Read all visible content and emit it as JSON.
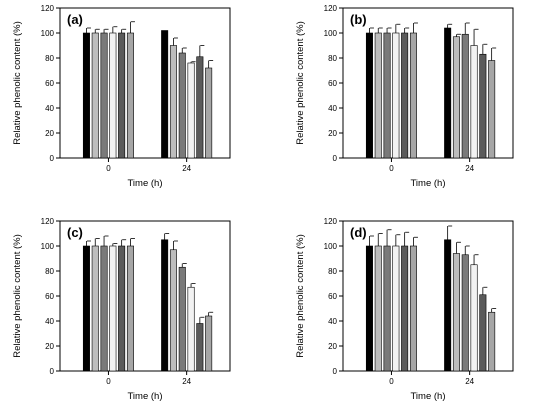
{
  "figure": {
    "colors": {
      "bar_fills": [
        "#000000",
        "#bdbdbd",
        "#7a7a7a",
        "#f2f2f2",
        "#5a5a5a",
        "#a6a6a6"
      ],
      "bar_stroke": "#000000",
      "axis": "#000000"
    }
  },
  "chart_data": [
    {
      "panel_label": "(a)",
      "type": "bar",
      "categories": [
        "0",
        "24"
      ],
      "xlabel": "Time (h)",
      "ylabel": "Relative phenolic content (%)",
      "ylim": [
        0,
        120
      ],
      "yticks": [
        0,
        20,
        40,
        60,
        80,
        100,
        120
      ],
      "grid": false,
      "series": [
        {
          "values": [
            100,
            102
          ],
          "errors": [
            4,
            0
          ]
        },
        {
          "values": [
            100,
            90
          ],
          "errors": [
            3,
            6
          ]
        },
        {
          "values": [
            100,
            84
          ],
          "errors": [
            3,
            4
          ]
        },
        {
          "values": [
            100,
            76
          ],
          "errors": [
            5,
            1
          ]
        },
        {
          "values": [
            100,
            81
          ],
          "errors": [
            3,
            9
          ]
        },
        {
          "values": [
            100,
            72
          ],
          "errors": [
            9,
            6
          ]
        }
      ]
    },
    {
      "panel_label": "(b)",
      "type": "bar",
      "categories": [
        "0",
        "24"
      ],
      "xlabel": "Time (h)",
      "ylabel": "Relative phenolic content (%)",
      "ylim": [
        0,
        120
      ],
      "yticks": [
        0,
        20,
        40,
        60,
        80,
        100,
        120
      ],
      "grid": false,
      "series": [
        {
          "values": [
            100,
            104
          ],
          "errors": [
            4,
            3
          ]
        },
        {
          "values": [
            100,
            97
          ],
          "errors": [
            4,
            2
          ]
        },
        {
          "values": [
            100,
            99
          ],
          "errors": [
            4,
            9
          ]
        },
        {
          "values": [
            100,
            90
          ],
          "errors": [
            7,
            13
          ]
        },
        {
          "values": [
            100,
            83
          ],
          "errors": [
            4,
            8
          ]
        },
        {
          "values": [
            100,
            78
          ],
          "errors": [
            8,
            10
          ]
        }
      ]
    },
    {
      "panel_label": "(c)",
      "type": "bar",
      "categories": [
        "0",
        "24"
      ],
      "xlabel": "Time (h)",
      "ylabel": "Relative phenolic content (%)",
      "ylim": [
        0,
        120
      ],
      "yticks": [
        0,
        20,
        40,
        60,
        80,
        100,
        120
      ],
      "grid": false,
      "series": [
        {
          "values": [
            100,
            105
          ],
          "errors": [
            4,
            5
          ]
        },
        {
          "values": [
            100,
            97
          ],
          "errors": [
            6,
            7
          ]
        },
        {
          "values": [
            100,
            83
          ],
          "errors": [
            8,
            3
          ]
        },
        {
          "values": [
            100,
            67
          ],
          "errors": [
            2,
            3
          ]
        },
        {
          "values": [
            100,
            38
          ],
          "errors": [
            5,
            5
          ]
        },
        {
          "values": [
            100,
            44
          ],
          "errors": [
            6,
            3
          ]
        }
      ]
    },
    {
      "panel_label": "(d)",
      "type": "bar",
      "categories": [
        "0",
        "24"
      ],
      "xlabel": "Time (h)",
      "ylabel": "Relative phenolic content (%)",
      "ylim": [
        0,
        120
      ],
      "yticks": [
        0,
        20,
        40,
        60,
        80,
        100,
        120
      ],
      "grid": false,
      "series": [
        {
          "values": [
            100,
            105
          ],
          "errors": [
            8,
            11
          ]
        },
        {
          "values": [
            100,
            94
          ],
          "errors": [
            10,
            9
          ]
        },
        {
          "values": [
            100,
            93
          ],
          "errors": [
            13,
            7
          ]
        },
        {
          "values": [
            100,
            85
          ],
          "errors": [
            9,
            8
          ]
        },
        {
          "values": [
            100,
            61
          ],
          "errors": [
            11,
            6
          ]
        },
        {
          "values": [
            100,
            47
          ],
          "errors": [
            7,
            3
          ]
        }
      ]
    }
  ]
}
